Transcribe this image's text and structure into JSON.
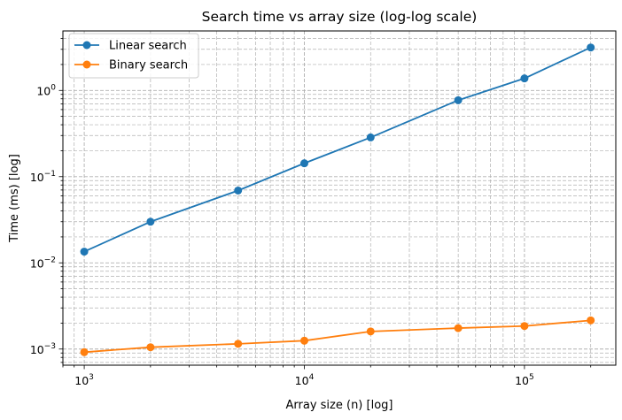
{
  "chart_data": {
    "type": "line",
    "title": "Search time vs array size (log-log scale)",
    "xlabel": "Array size (n) [log]",
    "ylabel": "Time (ms) [log]",
    "x_scale": "log",
    "y_scale": "log",
    "xlim": [
      800,
      260000
    ],
    "ylim": [
      0.00065,
      4.9
    ],
    "x_ticks": [
      {
        "value": 1000,
        "base": "10",
        "exp": "3"
      },
      {
        "value": 10000,
        "base": "10",
        "exp": "4"
      },
      {
        "value": 100000,
        "base": "10",
        "exp": "5"
      }
    ],
    "y_ticks": [
      {
        "value": 0.001,
        "base": "10",
        "exp": "−3"
      },
      {
        "value": 0.01,
        "base": "10",
        "exp": "−2"
      },
      {
        "value": 0.1,
        "base": "10",
        "exp": "−1"
      },
      {
        "value": 1,
        "base": "10",
        "exp": "0"
      }
    ],
    "grid": true,
    "grid_style": "dashed, major and minor",
    "legend_position": "top-left",
    "x": [
      1000,
      2000,
      5000,
      10000,
      20000,
      50000,
      100000,
      200000
    ],
    "series": [
      {
        "name": "Linear search",
        "color": "#1f77b4",
        "marker": "circle",
        "values": [
          0.0135,
          0.03,
          0.069,
          0.143,
          0.285,
          0.77,
          1.38,
          3.15
        ]
      },
      {
        "name": "Binary search",
        "color": "#ff7f0e",
        "marker": "circle",
        "values": [
          0.00092,
          0.00105,
          0.00115,
          0.00125,
          0.0016,
          0.00175,
          0.00185,
          0.00215
        ]
      }
    ]
  }
}
